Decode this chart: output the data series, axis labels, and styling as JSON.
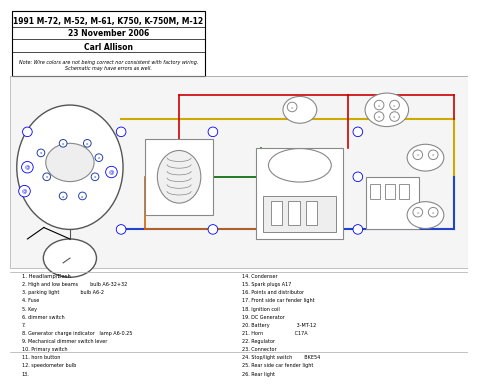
{
  "title_line1": "1991 M-72, M-52, M-61, K750, K-750M, M-12",
  "title_line2": "23 November 2006",
  "title_line3": "Carl Allison",
  "note": "Note: Wire colors are not being correct nor consistent with factory wiring.\nSchematic may have errors as well.",
  "bg_color": "#e8e8e8",
  "legend_items": [
    "1. Headlamp/Dash",
    "2. High and low beams        bulb A6-32+32",
    "3. parking light              bulb A6-2",
    "4. Fuse",
    "5. Key",
    "6. dimmer switch",
    "7.",
    "8. Generator charge indicator   lamp A6-0.25",
    "9. Mechanical dimmer switch lever",
    "10. Primary switch",
    "11. horn button",
    "12. speedometer bulb",
    "13."
  ],
  "legend_items_right": [
    "14. Condenser",
    "15. Spark plugs A17",
    "16. Points and distributor",
    "17. Front side car fender light",
    "18. Ignition coil",
    "19. DC Generator",
    "20. Battery                  3-MT-12",
    "21. Horn                     C17A",
    "22. Regulator",
    "23. Connector",
    "24. Stop/light switch        BKE54",
    "25. Rear side car fender light",
    "26. Rear light"
  ]
}
